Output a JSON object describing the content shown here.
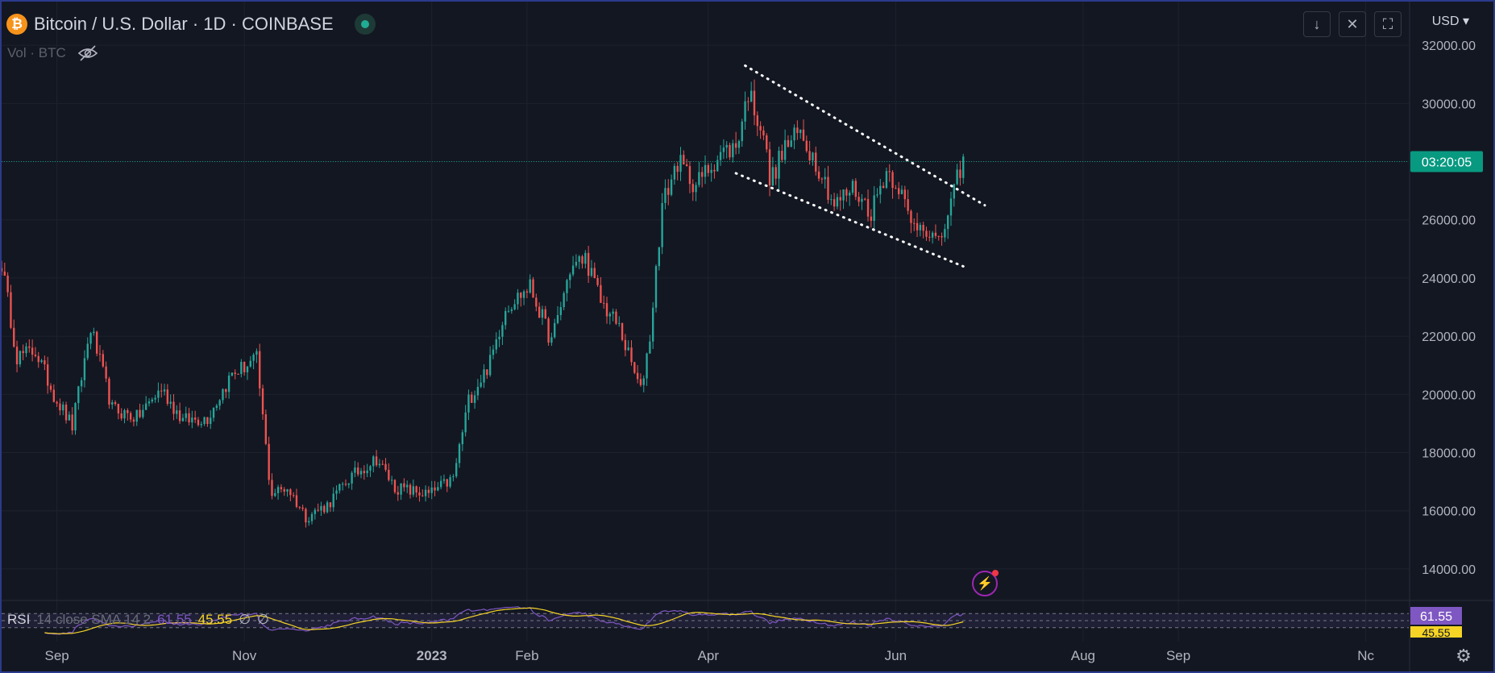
{
  "header": {
    "symbol_title": "Bitcoin / U.S. Dollar · 1D · COINBASE",
    "logo_glyph": "₿",
    "vol_label": "Vol · BTC",
    "currency": "USD"
  },
  "toolbar": {
    "download_icon": "↓",
    "collapse_icon": "✕",
    "fullscreen_icon": "⛶"
  },
  "colors": {
    "background": "#131722",
    "grid": "#1e222d",
    "up": "#26a69a",
    "down": "#ef5350",
    "axis_text": "#b2b5be",
    "countdown_bg": "#089981",
    "rsi_line": "#7e57c2",
    "rsi_sma": "#f5d425",
    "trendline": "#ffffff"
  },
  "rsi": {
    "name": "RSI",
    "params": "14 close SMA 14 2",
    "value": "61.55",
    "sma_value": "45.55",
    "extra1": "∅",
    "extra2": "∅",
    "band_upper": 70,
    "band_lower": 30
  },
  "countdown": "03:20:05",
  "chart_data": {
    "type": "candlestick",
    "interval": "1D",
    "x_labels": [
      {
        "date": "2022-09-01",
        "label": "Sep"
      },
      {
        "date": "2022-11-01",
        "label": "Nov"
      },
      {
        "date": "2023-01-01",
        "label": "2023"
      },
      {
        "date": "2023-02-01",
        "label": "Feb"
      },
      {
        "date": "2023-04-01",
        "label": "Apr"
      },
      {
        "date": "2023-06-01",
        "label": "Jun"
      },
      {
        "date": "2023-08-01",
        "label": "Aug"
      },
      {
        "date": "2023-09-01",
        "label": "Sep"
      },
      {
        "date": "2023-11-01",
        "label": "Nc"
      }
    ],
    "y_ticks": [
      14000,
      16000,
      18000,
      20000,
      22000,
      24000,
      26000,
      28000,
      30000,
      32000
    ],
    "y_tick_labels": [
      "14000.00",
      "16000.00",
      "18000.00",
      "20000.00",
      "22000.00",
      "24000.00",
      "26000.00",
      "28000.00",
      "30000.00",
      "32000.00"
    ],
    "ylim": [
      13000,
      33500
    ],
    "xlim": [
      "2022-08-14",
      "2023-11-15"
    ],
    "last_price": 28000,
    "close_path": [
      [
        "2022-08-14",
        24500
      ],
      [
        "2022-08-19",
        21300
      ],
      [
        "2022-08-25",
        21500
      ],
      [
        "2022-08-31",
        20000
      ],
      [
        "2022-09-06",
        18900
      ],
      [
        "2022-09-12",
        22300
      ],
      [
        "2022-09-19",
        19500
      ],
      [
        "2022-09-27",
        19200
      ],
      [
        "2022-10-05",
        20200
      ],
      [
        "2022-10-12",
        19100
      ],
      [
        "2022-10-20",
        19200
      ],
      [
        "2022-10-28",
        20700
      ],
      [
        "2022-11-05",
        21200
      ],
      [
        "2022-11-09",
        17200
      ],
      [
        "2022-11-10",
        16600
      ],
      [
        "2022-11-15",
        16800
      ],
      [
        "2022-11-21",
        15800
      ],
      [
        "2022-11-28",
        16200
      ],
      [
        "2022-12-05",
        17100
      ],
      [
        "2022-12-14",
        17800
      ],
      [
        "2022-12-20",
        16800
      ],
      [
        "2022-12-31",
        16550
      ],
      [
        "2023-01-08",
        17100
      ],
      [
        "2023-01-13",
        19800
      ],
      [
        "2023-01-20",
        21100
      ],
      [
        "2023-01-25",
        23000
      ],
      [
        "2023-02-02",
        23700
      ],
      [
        "2023-02-09",
        21800
      ],
      [
        "2023-02-15",
        24300
      ],
      [
        "2023-02-20",
        24700
      ],
      [
        "2023-02-25",
        23200
      ],
      [
        "2023-03-03",
        22300
      ],
      [
        "2023-03-10",
        20100
      ],
      [
        "2023-03-13",
        22000
      ],
      [
        "2023-03-17",
        26500
      ],
      [
        "2023-03-22",
        28000
      ],
      [
        "2023-03-28",
        27200
      ],
      [
        "2023-04-05",
        28300
      ],
      [
        "2023-04-10",
        28500
      ],
      [
        "2023-04-14",
        30400
      ],
      [
        "2023-04-19",
        29000
      ],
      [
        "2023-04-21",
        27300
      ],
      [
        "2023-04-26",
        28500
      ],
      [
        "2023-05-01",
        29000
      ],
      [
        "2023-05-08",
        27600
      ],
      [
        "2023-05-12",
        26500
      ],
      [
        "2023-05-18",
        27100
      ],
      [
        "2023-05-24",
        26300
      ],
      [
        "2023-05-29",
        27700
      ],
      [
        "2023-06-02",
        27200
      ],
      [
        "2023-06-06",
        25800
      ],
      [
        "2023-06-10",
        25900
      ],
      [
        "2023-06-15",
        25100
      ],
      [
        "2023-06-20",
        26900
      ],
      [
        "2023-06-22",
        27800
      ],
      [
        "2023-06-23",
        28000
      ]
    ],
    "trendlines": [
      {
        "style": "dotted",
        "from": [
          "2023-04-13",
          31300
        ],
        "to": [
          "2023-06-30",
          26500
        ]
      },
      {
        "style": "dotted",
        "from": [
          "2023-04-10",
          27600
        ],
        "to": [
          "2023-06-23",
          24400
        ]
      }
    ],
    "rsi_ylim": [
      0,
      100
    ]
  }
}
